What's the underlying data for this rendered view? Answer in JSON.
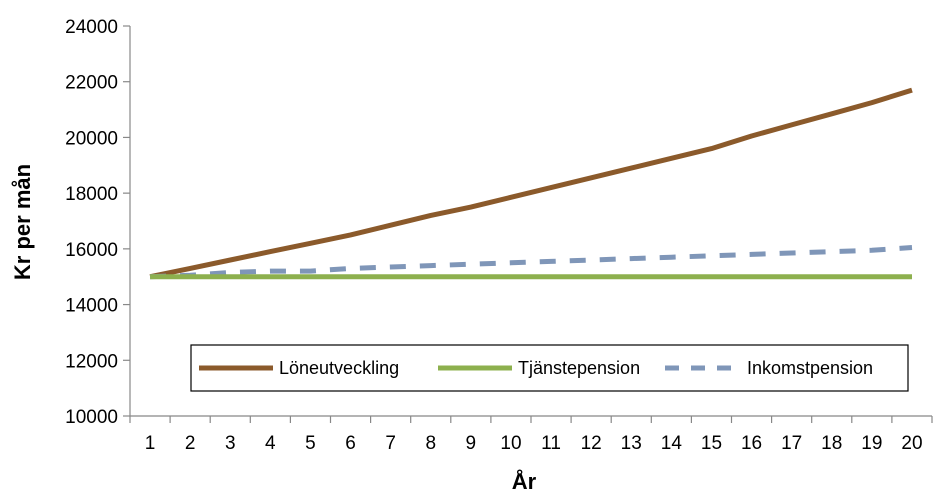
{
  "chart_data": {
    "type": "line",
    "title": "",
    "xlabel": "År",
    "ylabel": "Kr per mån",
    "categories": [
      "1",
      "2",
      "3",
      "4",
      "5",
      "6",
      "7",
      "8",
      "9",
      "10",
      "11",
      "12",
      "13",
      "14",
      "15",
      "16",
      "17",
      "18",
      "19",
      "20"
    ],
    "x": [
      1,
      2,
      3,
      4,
      5,
      6,
      7,
      8,
      9,
      10,
      11,
      12,
      13,
      14,
      15,
      16,
      17,
      18,
      19,
      20
    ],
    "ylim": [
      10000,
      24000
    ],
    "yticks": [
      "10000",
      "12000",
      "14000",
      "16000",
      "18000",
      "20000",
      "22000",
      "24000"
    ],
    "grid": false,
    "legend_position": "bottom-inside",
    "series": [
      {
        "name": "Löneutveckling",
        "color": "#8B5A2B",
        "style": "solid",
        "values": [
          15000,
          15300,
          15600,
          15900,
          16200,
          16500,
          16850,
          17200,
          17500,
          17850,
          18200,
          18550,
          18900,
          19250,
          19600,
          20050,
          20450,
          20850,
          21250,
          21700
        ]
      },
      {
        "name": "Tjänstepension",
        "color": "#8DB04E",
        "style": "solid",
        "values": [
          15000,
          15000,
          15000,
          15000,
          15000,
          15000,
          15000,
          15000,
          15000,
          15000,
          15000,
          15000,
          15000,
          15000,
          15000,
          15000,
          15000,
          15000,
          15000,
          15000
        ]
      },
      {
        "name": "Inkomstpension",
        "color": "#7F96B8",
        "style": "dashed",
        "values": [
          15000,
          15050,
          15150,
          15200,
          15200,
          15300,
          15350,
          15400,
          15450,
          15500,
          15550,
          15600,
          15650,
          15700,
          15750,
          15800,
          15850,
          15900,
          15950,
          16050
        ]
      }
    ]
  }
}
